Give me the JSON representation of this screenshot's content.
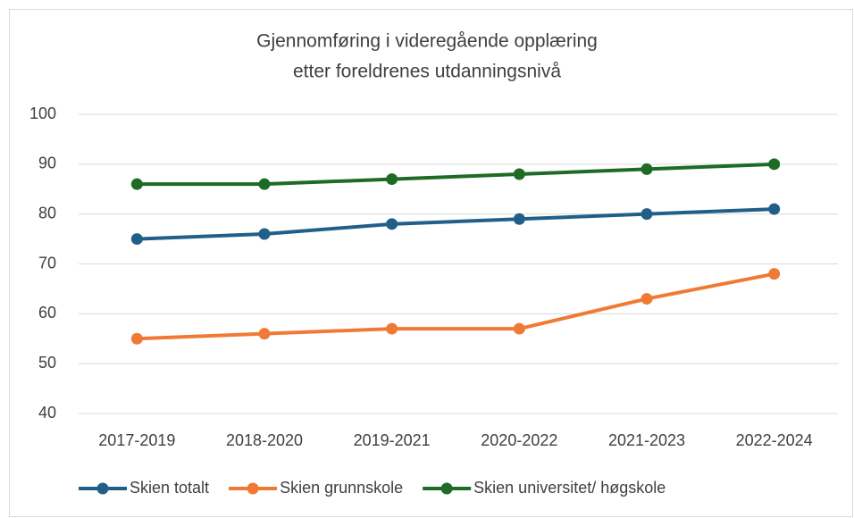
{
  "chart_data": {
    "type": "line",
    "title": [
      "Gjennomføring i videregående opplæring",
      "etter foreldrenes utdanningsnivå"
    ],
    "categories": [
      "2017-2019",
      "2018-2020",
      "2019-2021",
      "2020-2022",
      "2021-2023",
      "2022-2024"
    ],
    "series": [
      {
        "name": "Skien totalt",
        "color": "#215f8a",
        "values": [
          75,
          76,
          78,
          79,
          80,
          81
        ]
      },
      {
        "name": "Skien grunnskole",
        "color": "#f07a35",
        "values": [
          55,
          56,
          57,
          57,
          63,
          68
        ]
      },
      {
        "name": "Skien universitet/ høgskole",
        "color": "#1e6b25",
        "values": [
          86,
          86,
          87,
          88,
          89,
          90
        ]
      }
    ],
    "ylim": [
      40,
      100
    ],
    "yticks": [
      40,
      50,
      60,
      70,
      80,
      90,
      100
    ],
    "grid": true,
    "legend": "bottom"
  }
}
